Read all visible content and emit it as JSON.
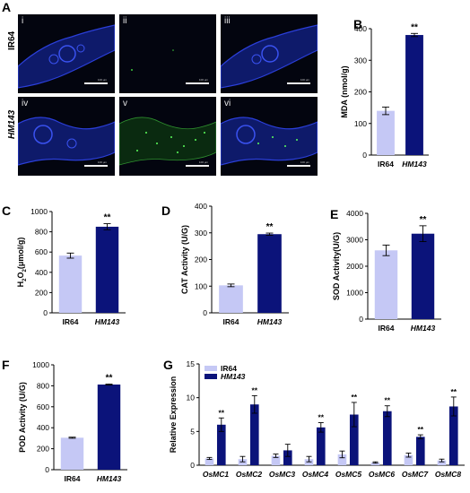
{
  "panel_a": {
    "letter": "A",
    "rows": [
      {
        "label": "IR64",
        "italic": false,
        "tiles": [
          "i",
          "ii",
          "iii"
        ]
      },
      {
        "label": "HM143",
        "italic": true,
        "tiles": [
          "iv",
          "v",
          "vi"
        ]
      }
    ],
    "channel_colors": [
      "#2b3fd9",
      "#3ec93e",
      "#2b3fd9"
    ],
    "scale_text": "100 μm"
  },
  "chart_data": [
    {
      "letter": "B",
      "type": "bar",
      "categories": [
        "IR64",
        "HM143"
      ],
      "values": [
        140,
        380
      ],
      "errors": [
        12,
        5
      ],
      "ylabel": "MDA (nmol/g)",
      "ylim": [
        0,
        400
      ],
      "yticks": [
        0,
        100,
        200,
        300,
        400
      ],
      "significance": "**",
      "colors": [
        "#c5c8f5",
        "#0b137a"
      ]
    },
    {
      "letter": "C",
      "type": "bar",
      "categories": [
        "IR64",
        "HM143"
      ],
      "values": [
        565,
        850
      ],
      "errors": [
        25,
        30
      ],
      "ylabel": "H2O2(μmol/g)",
      "ylim": [
        0,
        1000
      ],
      "yticks": [
        0,
        200,
        400,
        600,
        800,
        1000
      ],
      "significance": "**",
      "colors": [
        "#c5c8f5",
        "#0b137a"
      ]
    },
    {
      "letter": "D",
      "type": "bar",
      "categories": [
        "IR64",
        "HM143"
      ],
      "values": [
        103,
        295
      ],
      "errors": [
        5,
        4
      ],
      "ylabel": "CAT Activity (U/G)",
      "ylim": [
        0,
        400
      ],
      "yticks": [
        0,
        100,
        200,
        300,
        400
      ],
      "significance": "**",
      "colors": [
        "#c5c8f5",
        "#0b137a"
      ]
    },
    {
      "letter": "E",
      "type": "bar",
      "categories": [
        "IR64",
        "HM143"
      ],
      "values": [
        2600,
        3230
      ],
      "errors": [
        200,
        300
      ],
      "ylabel": "SOD Activity(U/G)",
      "ylim": [
        0,
        4000
      ],
      "yticks": [
        0,
        1000,
        2000,
        3000,
        4000
      ],
      "significance": "**",
      "colors": [
        "#c5c8f5",
        "#0b137a"
      ]
    },
    {
      "letter": "F",
      "type": "bar",
      "categories": [
        "IR64",
        "HM143"
      ],
      "values": [
        305,
        812
      ],
      "errors": [
        5,
        5
      ],
      "ylabel": "POD Activity (U/G)",
      "ylim": [
        0,
        1000
      ],
      "yticks": [
        0,
        200,
        400,
        600,
        800,
        1000
      ],
      "significance": "**",
      "colors": [
        "#c5c8f5",
        "#0b137a"
      ]
    },
    {
      "letter": "G",
      "type": "bar",
      "categories": [
        "OsMC1",
        "OsMC2",
        "OsMC3",
        "OsMC4",
        "OsMC5",
        "OsMC6",
        "OsMC7",
        "OsMC8"
      ],
      "series": [
        {
          "name": "IR64",
          "values": [
            1.0,
            0.9,
            1.4,
            0.9,
            1.6,
            0.4,
            1.5,
            0.7
          ],
          "errors": [
            0.15,
            0.4,
            0.25,
            0.4,
            0.5,
            0.1,
            0.3,
            0.2
          ],
          "color": "#c5c8f5"
        },
        {
          "name": "HM143",
          "values": [
            6.0,
            9.0,
            2.2,
            5.6,
            7.5,
            8.0,
            4.2,
            8.7
          ],
          "errors": [
            1.0,
            1.3,
            0.9,
            0.7,
            1.8,
            0.8,
            0.3,
            1.4
          ],
          "color": "#0b137a"
        }
      ],
      "significance": [
        "**",
        "**",
        "",
        "**",
        "**",
        "**",
        "**",
        "**"
      ],
      "ylabel": "Relative Expression",
      "ylim": [
        0,
        15
      ],
      "yticks": [
        0,
        5,
        10,
        15
      ],
      "legend": "top-left"
    }
  ]
}
